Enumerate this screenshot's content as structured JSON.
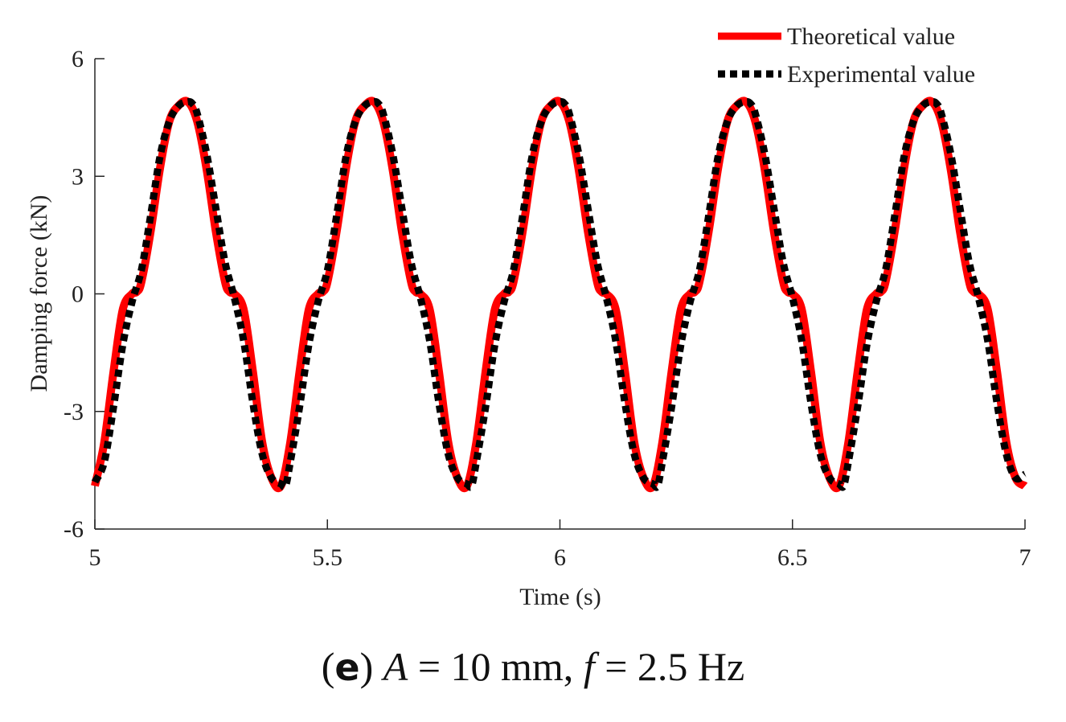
{
  "chart_data": {
    "type": "line",
    "title": "",
    "xlabel": "Time (s)",
    "ylabel": "Damping force (kN)",
    "xlim": [
      5,
      7
    ],
    "ylim": [
      -6,
      6
    ],
    "xticks": [
      5,
      5.5,
      6,
      6.5,
      7
    ],
    "xtick_labels": [
      "5",
      "5.5",
      "6",
      "6.5",
      "7"
    ],
    "yticks": [
      6,
      3,
      0,
      -3,
      -6
    ],
    "ytick_labels": [
      "6",
      "3",
      "0",
      "-3",
      "-6"
    ],
    "legend_position": "top-right",
    "series": [
      {
        "name": "Theoretical value",
        "style": "solid",
        "color": "#ff0000",
        "x": [
          5.0,
          5.02,
          5.04,
          5.06,
          5.08,
          5.09,
          5.1,
          5.12,
          5.14,
          5.16,
          5.18,
          5.2,
          5.22,
          5.24,
          5.26,
          5.28,
          5.29,
          5.3,
          5.32,
          5.34,
          5.36,
          5.38,
          5.4,
          5.42,
          5.44,
          5.46,
          5.48,
          5.49,
          5.5,
          5.52,
          5.54,
          5.56,
          5.58,
          5.6,
          5.62,
          5.64,
          5.66,
          5.68,
          5.69,
          5.7,
          5.72,
          5.74,
          5.76,
          5.78,
          5.8,
          5.82,
          5.84,
          5.86,
          5.88,
          5.89,
          5.9,
          5.92,
          5.94,
          5.96,
          5.98,
          6.0,
          6.02,
          6.04,
          6.06,
          6.08,
          6.09,
          6.1,
          6.12,
          6.14,
          6.16,
          6.18,
          6.2,
          6.22,
          6.24,
          6.26,
          6.28,
          6.29,
          6.3,
          6.32,
          6.34,
          6.36,
          6.38,
          6.4,
          6.42,
          6.44,
          6.46,
          6.48,
          6.49,
          6.5,
          6.52,
          6.54,
          6.56,
          6.58,
          6.6,
          6.62,
          6.64,
          6.66,
          6.68,
          6.69,
          6.7,
          6.72,
          6.74,
          6.76,
          6.78,
          6.8,
          6.82,
          6.84,
          6.86,
          6.88,
          6.89,
          6.9,
          6.92,
          6.94,
          6.96,
          6.98,
          7.0
        ],
        "y": [
          -4.9,
          -3.8,
          -2.0,
          -0.4,
          0.0,
          0.05,
          0.3,
          1.6,
          3.2,
          4.4,
          4.8,
          4.9,
          4.4,
          3.2,
          1.6,
          0.3,
          0.05,
          0.0,
          -0.4,
          -2.0,
          -3.8,
          -4.7,
          -4.9,
          -3.8,
          -2.0,
          -0.4,
          0.0,
          0.05,
          0.3,
          1.6,
          3.2,
          4.4,
          4.8,
          4.9,
          4.4,
          3.2,
          1.6,
          0.3,
          0.05,
          0.0,
          -0.4,
          -2.0,
          -3.8,
          -4.7,
          -4.9,
          -3.8,
          -2.0,
          -0.4,
          0.0,
          0.05,
          0.3,
          1.6,
          3.2,
          4.4,
          4.8,
          4.9,
          4.4,
          3.2,
          1.6,
          0.3,
          0.05,
          0.0,
          -0.4,
          -2.0,
          -3.8,
          -4.7,
          -4.9,
          -3.8,
          -2.0,
          -0.4,
          0.0,
          0.05,
          0.3,
          1.6,
          3.2,
          4.4,
          4.8,
          4.9,
          4.4,
          3.2,
          1.6,
          0.3,
          0.05,
          0.0,
          -0.4,
          -2.0,
          -3.8,
          -4.7,
          -4.9,
          -3.8,
          -2.0,
          -0.4,
          0.0,
          0.05,
          0.3,
          1.6,
          3.2,
          4.4,
          4.8,
          4.9,
          4.4,
          3.2,
          1.6,
          0.3,
          0.05,
          0.0,
          -0.4,
          -2.0,
          -3.8,
          -4.7,
          -4.9
        ]
      },
      {
        "name": "Experimental value",
        "style": "dotted",
        "color": "#000000",
        "x": [
          5.0,
          5.02,
          5.04,
          5.06,
          5.08,
          5.1,
          5.12,
          5.14,
          5.16,
          5.18,
          5.2,
          5.21,
          5.22,
          5.24,
          5.26,
          5.28,
          5.3,
          5.32,
          5.34,
          5.36,
          5.38,
          5.4,
          5.41,
          5.42,
          5.44,
          5.46,
          5.48,
          5.5,
          5.52,
          5.54,
          5.56,
          5.58,
          5.6,
          5.61,
          5.62,
          5.64,
          5.66,
          5.68,
          5.7,
          5.72,
          5.74,
          5.76,
          5.78,
          5.8,
          5.81,
          5.82,
          5.84,
          5.86,
          5.88,
          5.9,
          5.92,
          5.94,
          5.96,
          5.98,
          6.0,
          6.01,
          6.02,
          6.04,
          6.06,
          6.08,
          6.1,
          6.12,
          6.14,
          6.16,
          6.18,
          6.2,
          6.21,
          6.22,
          6.24,
          6.26,
          6.28,
          6.3,
          6.32,
          6.34,
          6.36,
          6.38,
          6.4,
          6.41,
          6.42,
          6.44,
          6.46,
          6.48,
          6.5,
          6.52,
          6.54,
          6.56,
          6.58,
          6.6,
          6.61,
          6.62,
          6.64,
          6.66,
          6.68,
          6.7,
          6.72,
          6.74,
          6.76,
          6.78,
          6.8,
          6.81,
          6.82,
          6.84,
          6.86,
          6.88,
          6.9,
          6.92,
          6.94,
          6.96,
          6.98,
          7.0
        ],
        "y": [
          -4.8,
          -4.3,
          -2.9,
          -1.3,
          -0.2,
          0.6,
          2.0,
          3.5,
          4.4,
          4.8,
          4.9,
          4.85,
          4.6,
          3.6,
          2.2,
          0.8,
          -0.1,
          -1.2,
          -2.8,
          -4.1,
          -4.7,
          -4.85,
          -4.9,
          -4.3,
          -2.9,
          -1.3,
          -0.2,
          0.6,
          2.0,
          3.5,
          4.4,
          4.8,
          4.9,
          4.85,
          4.6,
          3.6,
          2.2,
          0.8,
          -0.1,
          -1.2,
          -2.8,
          -4.1,
          -4.7,
          -4.85,
          -4.9,
          -4.3,
          -2.9,
          -1.3,
          -0.2,
          0.6,
          2.0,
          3.5,
          4.4,
          4.8,
          4.9,
          4.85,
          4.6,
          3.6,
          2.2,
          0.8,
          -0.1,
          -1.2,
          -2.8,
          -4.1,
          -4.7,
          -4.85,
          -4.9,
          -4.3,
          -2.9,
          -1.3,
          -0.2,
          0.6,
          2.0,
          3.5,
          4.4,
          4.8,
          4.9,
          4.85,
          4.6,
          3.6,
          2.2,
          0.8,
          -0.1,
          -1.2,
          -2.8,
          -4.1,
          -4.7,
          -4.85,
          -4.9,
          -4.3,
          -2.9,
          -1.3,
          -0.2,
          0.6,
          2.0,
          3.5,
          4.4,
          4.8,
          4.9,
          4.85,
          4.6,
          3.6,
          2.2,
          0.8,
          -0.1,
          -1.2,
          -2.8,
          -4.1,
          -4.7,
          -4.6
        ]
      }
    ]
  },
  "caption": {
    "label": "(e)",
    "letter": "e",
    "text_a": "A",
    "text_a_value": "= 10 mm,",
    "text_f": "f",
    "text_f_value": "= 2.5 Hz"
  }
}
